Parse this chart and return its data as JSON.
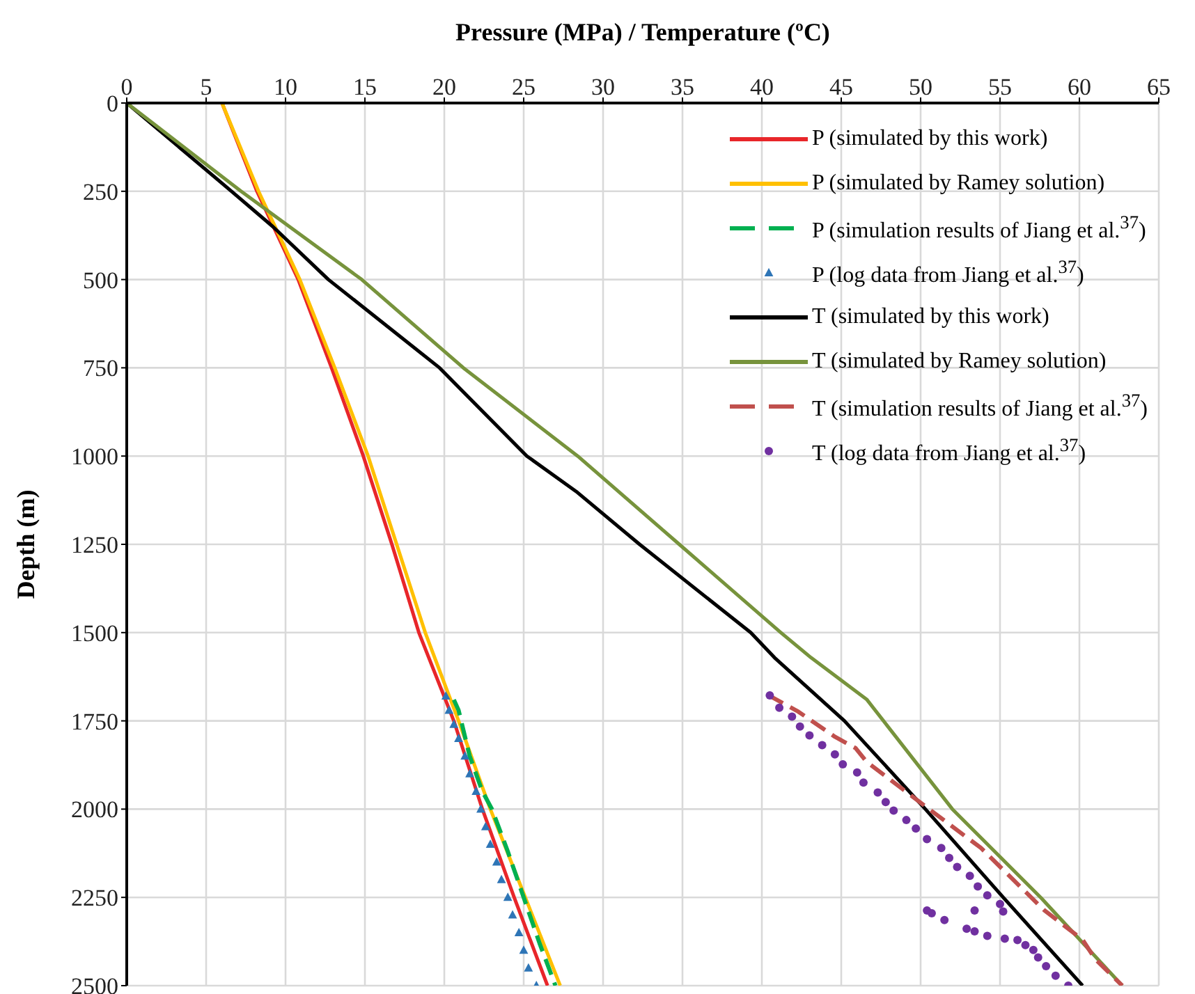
{
  "chart_data": {
    "type": "line",
    "xlabel": "Pressure (MPa) / Temperature (ºC)",
    "ylabel": "Depth (m)",
    "xlim": [
      0,
      65
    ],
    "xticks": [
      0,
      5,
      10,
      15,
      20,
      25,
      30,
      35,
      40,
      45,
      50,
      55,
      60,
      65
    ],
    "ylim": [
      2500,
      0
    ],
    "yticks": [
      0,
      250,
      500,
      750,
      1000,
      1250,
      1500,
      1750,
      2000,
      2250,
      2500
    ],
    "grid": true,
    "legend": "top right",
    "series": [
      {
        "name": "P (simulated by this work)",
        "color": "#e8262a",
        "line_style": "solid",
        "x": [
          6,
          8.2,
          10.8,
          12.9,
          14.9,
          16.7,
          18.4,
          20.6,
          22.4,
          24.4,
          26.5
        ],
        "values": [
          0,
          250,
          500,
          750,
          1000,
          1250,
          1500,
          1750,
          2000,
          2250,
          2500
        ]
      },
      {
        "name": "P (simulated by Ramey solution)",
        "color": "#ffc000",
        "line_style": "solid",
        "x": [
          6,
          8.3,
          10.9,
          13.1,
          15.2,
          17.0,
          18.8,
          20.9,
          22.9,
          25.1,
          27.3
        ],
        "values": [
          0,
          250,
          500,
          750,
          1000,
          1250,
          1500,
          1750,
          2000,
          2250,
          2500
        ]
      },
      {
        "name": "P (simulation results of Jiang et al.$^{37}$)",
        "type": "line",
        "color": "#00b050",
        "line_style": "dashed",
        "x": [
          20.6,
          20.9,
          21.6,
          22.4,
          23.0,
          24.0,
          25.0,
          26.0,
          27.0
        ],
        "values": [
          1690,
          1720,
          1850,
          1950,
          2000,
          2120,
          2250,
          2380,
          2500
        ]
      },
      {
        "name": "P (log data from Jiang et al.$^{37}$)",
        "type": "scatter",
        "color": "#2e75b6",
        "marker": "triangle",
        "x": [
          20.1,
          20.3,
          20.6,
          20.9,
          21.3,
          21.6,
          22.0,
          22.3,
          22.6,
          22.9,
          23.3,
          23.6,
          24.0,
          24.3,
          24.7,
          25.0,
          25.3,
          25.8
        ],
        "values": [
          1680,
          1720,
          1760,
          1800,
          1850,
          1900,
          1950,
          2000,
          2050,
          2100,
          2150,
          2200,
          2250,
          2300,
          2350,
          2400,
          2450,
          2500
        ]
      },
      {
        "name": "T (simulated by this work)",
        "color": "#000000",
        "line_style": "solid",
        "x": [
          0,
          6.6,
          9.2,
          12.7,
          19.7,
          25.2,
          28.3,
          32.3,
          39.3,
          40.8,
          45.2,
          50.3,
          55.2,
          60.2
        ],
        "values": [
          0,
          250,
          350,
          500,
          750,
          1000,
          1100,
          1250,
          1500,
          1571,
          1750,
          2000,
          2250,
          2500
        ]
      },
      {
        "name": "T (simulated by Ramey solution)",
        "color": "#77933c",
        "line_style": "solid",
        "x": [
          0,
          7.2,
          14.8,
          21.2,
          28.4,
          34.8,
          41.2,
          43.1,
          46.6,
          52.0,
          57.6,
          62.7
        ],
        "values": [
          0,
          250,
          500,
          750,
          1000,
          1250,
          1500,
          1571,
          1689,
          2000,
          2252,
          2500
        ]
      },
      {
        "name": "T (simulation results of Jiang et al.$^{37}$)",
        "type": "line",
        "color": "#c0504d",
        "line_style": "dashed",
        "x": [
          40.4,
          42.3,
          44.6,
          45.9,
          46.6,
          50.3,
          53.8,
          57.8,
          60.2,
          61.0,
          62.7
        ],
        "values": [
          1677,
          1724,
          1795,
          1827,
          1866,
          1992,
          2110,
          2287,
          2370,
          2425,
          2500
        ]
      },
      {
        "name": "T (log data from Jiang et al.$^{37}$)",
        "type": "scatter",
        "color": "#7030a0",
        "marker": "circle",
        "x": [
          40.5,
          41.1,
          41.9,
          42.4,
          43.0,
          43.8,
          44.6,
          45.1,
          46.0,
          46.4,
          47.3,
          47.8,
          48.3,
          49.1,
          49.7,
          50.4,
          51.3,
          51.8,
          52.3,
          53.1,
          53.6,
          54.2,
          55.0,
          55.2,
          53.4,
          50.4,
          50.7,
          51.5,
          52.9,
          53.4,
          54.2,
          55.3,
          56.1,
          56.6,
          57.1,
          57.4,
          57.9,
          58.5,
          59.3
        ],
        "values": [
          1678,
          1713,
          1738,
          1766,
          1791,
          1819,
          1845,
          1873,
          1896,
          1925,
          1953,
          1980,
          2004,
          2031,
          2055,
          2085,
          2110,
          2138,
          2164,
          2189,
          2219,
          2244,
          2269,
          2290,
          2287,
          2287,
          2295,
          2314,
          2339,
          2346,
          2359,
          2367,
          2371,
          2385,
          2399,
          2420,
          2445,
          2472,
          2500
        ]
      }
    ]
  }
}
